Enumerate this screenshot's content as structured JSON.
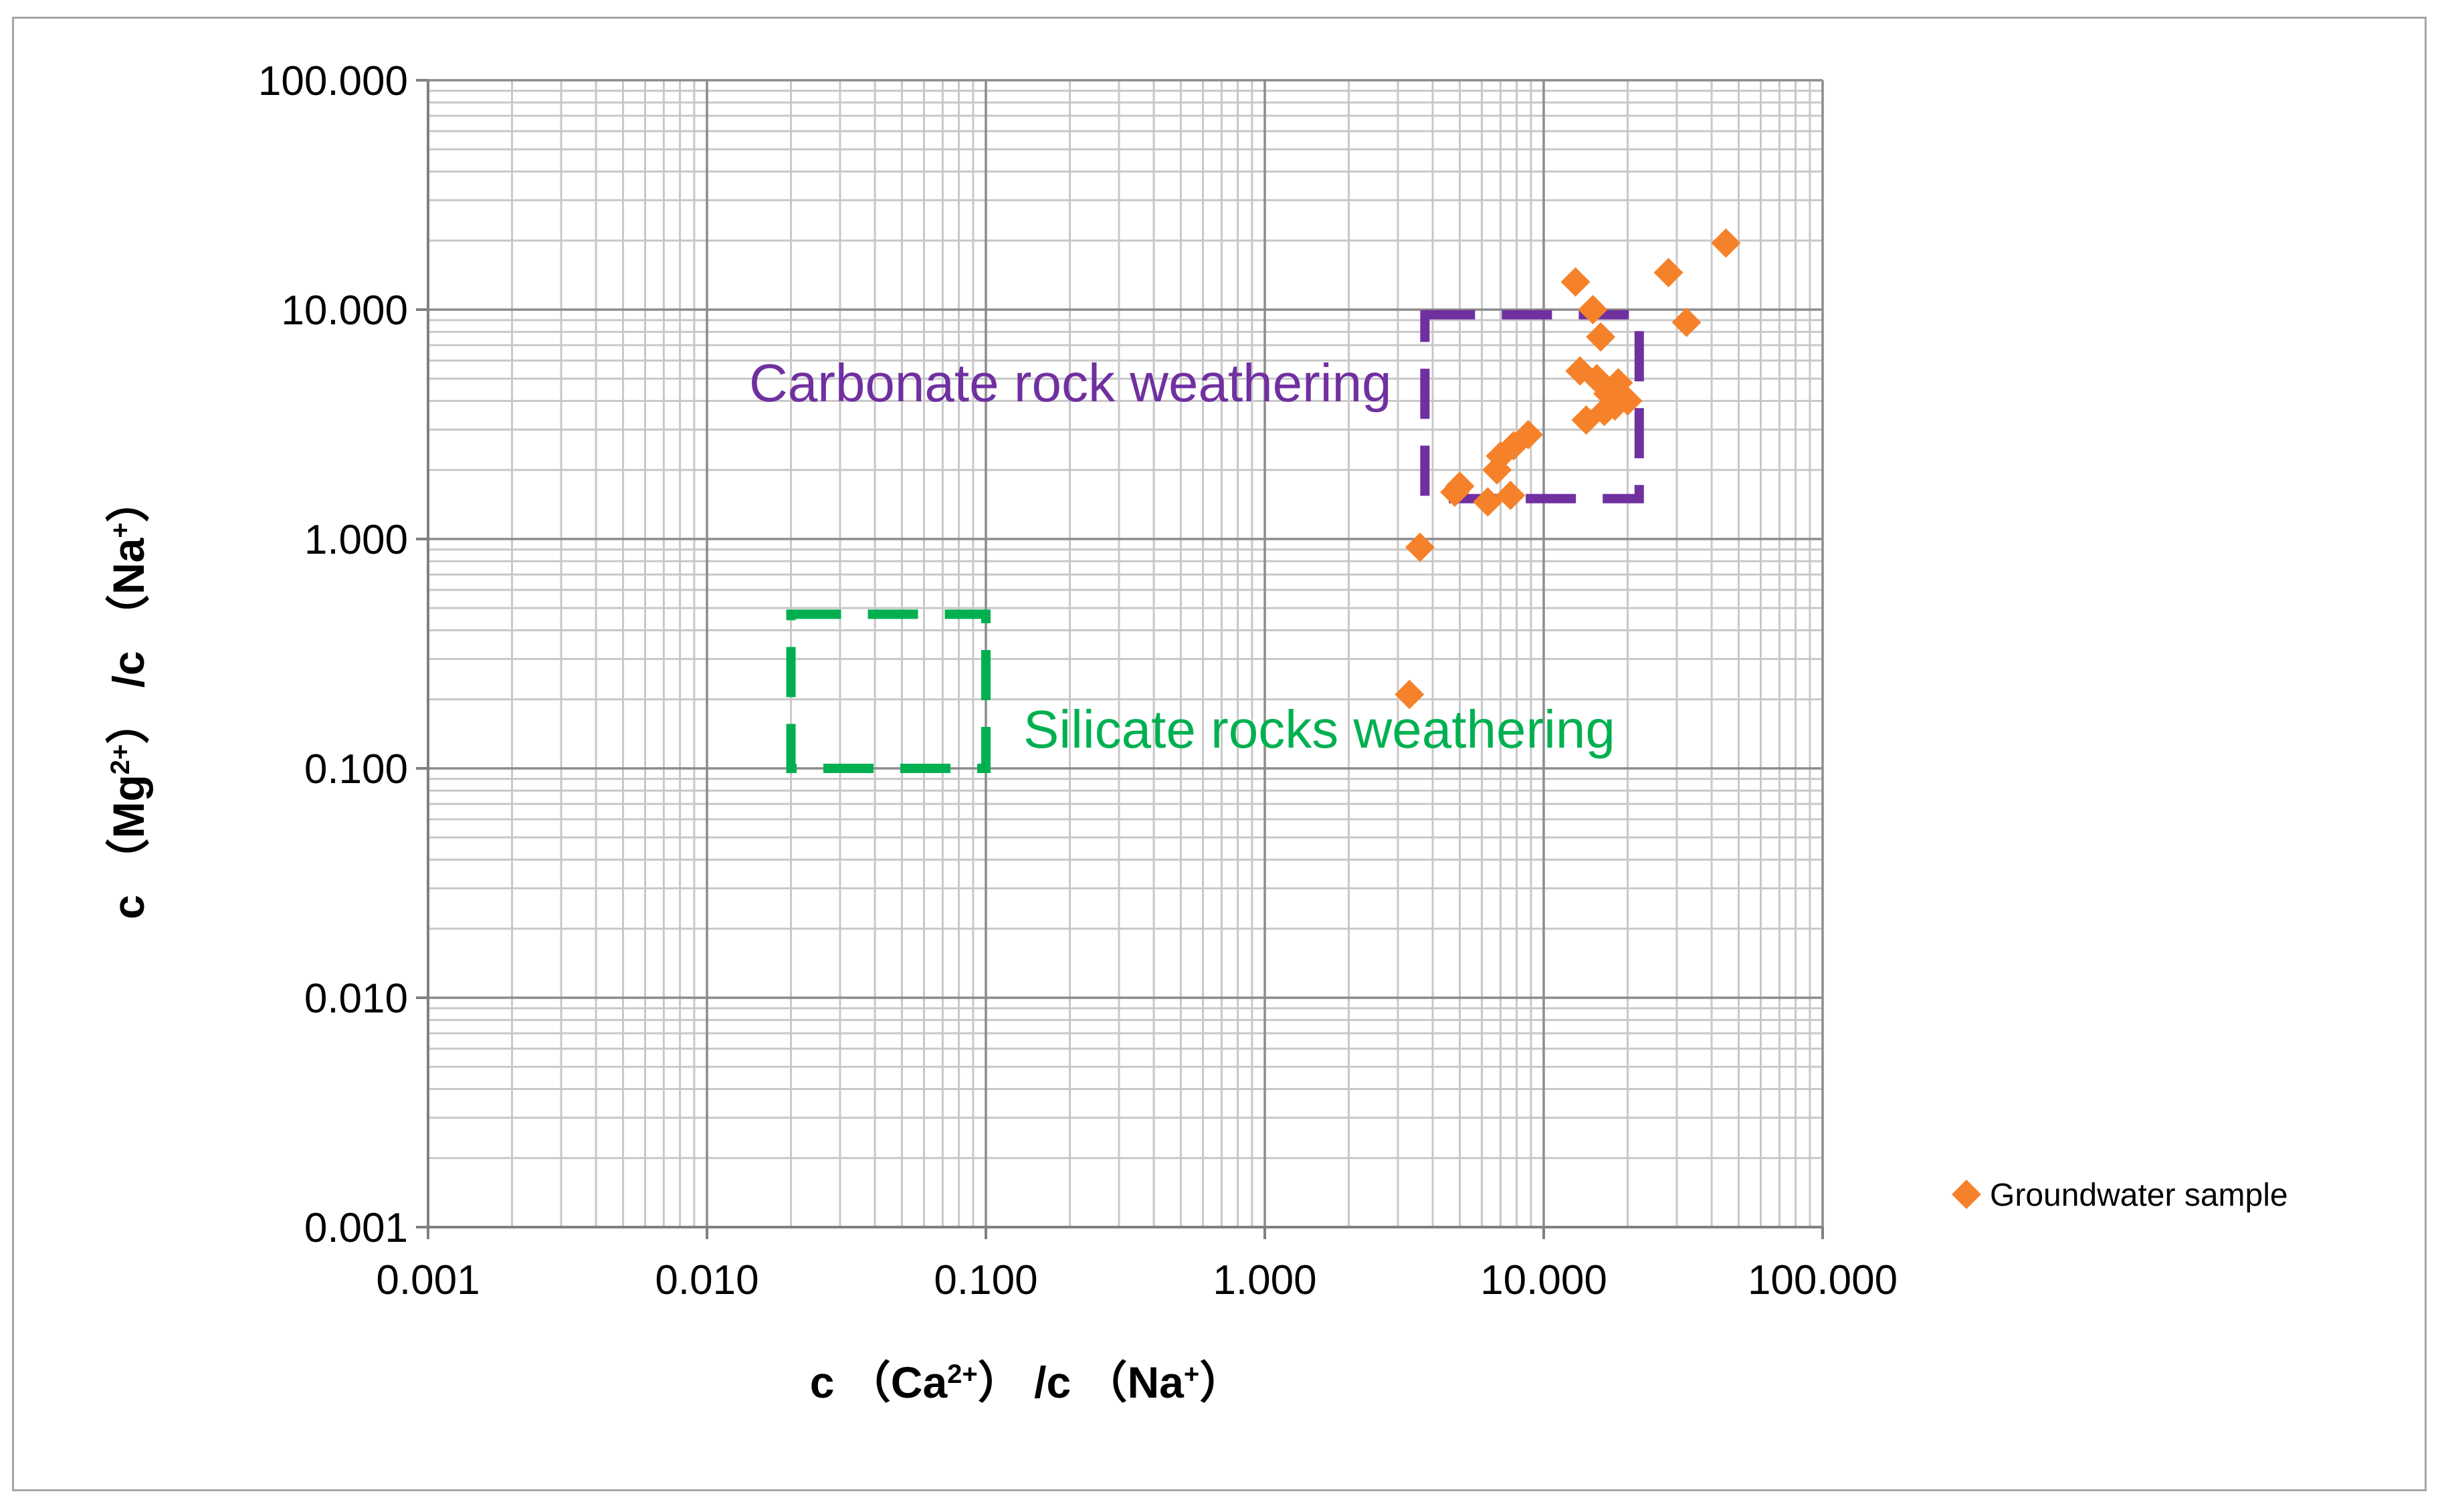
{
  "chart_data": {
    "type": "scatter",
    "x_scale": "log",
    "y_scale": "log",
    "xlim": [
      0.001,
      100
    ],
    "ylim": [
      0.001,
      100
    ],
    "grid": true,
    "x_ticks": [
      "0.001",
      "0.010",
      "0.100",
      "1.000",
      "10.000",
      "100.000"
    ],
    "y_ticks": [
      "0.001",
      "0.010",
      "0.100",
      "1.000",
      "10.000",
      "100.000"
    ],
    "xlabel": {
      "prefix": "c （Ca",
      "sup": "2+",
      "suffix": "） /c （Na",
      "sup2": "+",
      "end": "）"
    },
    "ylabel": {
      "prefix": "c （Mg",
      "sup": "2+",
      "suffix": "） /c （Na",
      "sup2": "+",
      "end": "）"
    },
    "legend": {
      "position": "right",
      "label": "Groundwater sample"
    },
    "series": [
      {
        "name": "Groundwater sample",
        "color": "#f5822a",
        "marker": "diamond",
        "points": [
          [
            3.3,
            0.21
          ],
          [
            3.6,
            0.92
          ],
          [
            4.8,
            1.6
          ],
          [
            5.0,
            1.7
          ],
          [
            6.3,
            1.45
          ],
          [
            6.8,
            2.0
          ],
          [
            7.0,
            2.3
          ],
          [
            7.6,
            1.55
          ],
          [
            7.8,
            2.55
          ],
          [
            8.8,
            2.85
          ],
          [
            13.0,
            13.2
          ],
          [
            13.5,
            5.4
          ],
          [
            14.2,
            3.3
          ],
          [
            15.0,
            10.0
          ],
          [
            15.5,
            5.0
          ],
          [
            16.0,
            7.6
          ],
          [
            16.5,
            3.6
          ],
          [
            17.0,
            4.3
          ],
          [
            18.0,
            3.8
          ],
          [
            18.5,
            4.8
          ],
          [
            20.0,
            4.0
          ],
          [
            28.0,
            14.5
          ],
          [
            32.5,
            8.8
          ],
          [
            45.0,
            19.5
          ]
        ]
      }
    ],
    "annotations": [
      {
        "text": "Carbonate rock weathering",
        "color": "#7030a0",
        "box": {
          "x": [
            3.75,
            22
          ],
          "y": [
            1.5,
            9.5
          ]
        },
        "box_color": "#7030a0"
      },
      {
        "text": "Silicate rocks weathering",
        "color": "#00b050",
        "box": {
          "x": [
            0.02,
            0.1
          ],
          "y": [
            0.1,
            0.47
          ]
        },
        "box_color": "#00b050"
      }
    ]
  }
}
